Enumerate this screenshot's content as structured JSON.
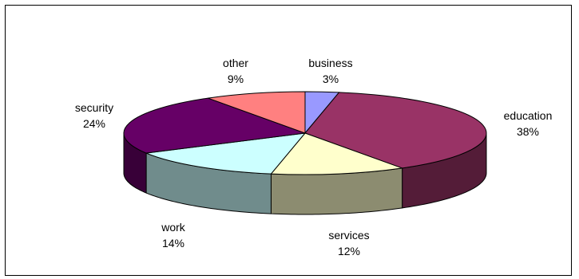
{
  "chart_data": {
    "type": "pie",
    "style": "3d",
    "title": "",
    "slices": [
      {
        "label": "business",
        "value": 3,
        "pct": "3%",
        "color": "#9999ff"
      },
      {
        "label": "education",
        "value": 38,
        "pct": "38%",
        "color": "#993366"
      },
      {
        "label": "services",
        "value": 12,
        "pct": "12%",
        "color": "#ffffcc"
      },
      {
        "label": "work",
        "value": 14,
        "pct": "14%",
        "color": "#ccffff"
      },
      {
        "label": "security",
        "value": 24,
        "pct": "24%",
        "color": "#660066"
      },
      {
        "label": "other",
        "value": 9,
        "pct": "9%",
        "color": "#ff8080"
      }
    ]
  }
}
